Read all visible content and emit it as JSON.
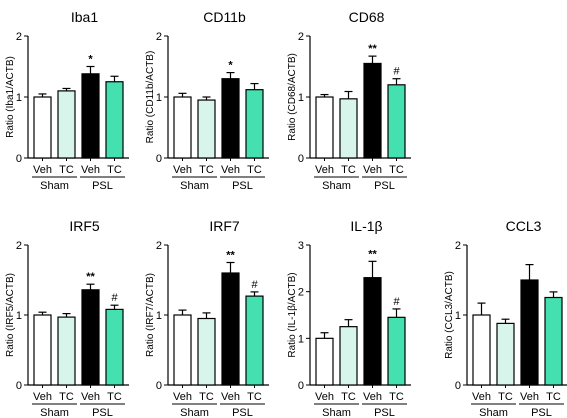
{
  "colors": {
    "veh_sham": "#ffffff",
    "tc_sham": "#d8f5ec",
    "veh_psl": "#000000",
    "tc_psl": "#44e0b0",
    "outline": "#000000"
  },
  "groups": {
    "sham": "Sham",
    "psl": "PSL"
  },
  "chart_data": [
    {
      "type": "bar",
      "title": "Iba1",
      "ylabel": "Ratio (Iba1/ACTB)",
      "ylim": [
        0,
        2
      ],
      "yticks": [
        "0",
        "1",
        "2"
      ],
      "categories": [
        "Veh",
        "TC",
        "Veh",
        "TC"
      ],
      "values": [
        1.0,
        1.1,
        1.38,
        1.25
      ],
      "errors": [
        0.05,
        0.04,
        0.12,
        0.09
      ],
      "annotations": [
        "",
        "",
        "*",
        ""
      ]
    },
    {
      "type": "bar",
      "title": "CD11b",
      "ylabel": "Ratio (CD11b/ACTB)",
      "ylim": [
        0,
        2
      ],
      "yticks": [
        "0",
        "1",
        "2"
      ],
      "categories": [
        "Veh",
        "TC",
        "Veh",
        "TC"
      ],
      "values": [
        1.0,
        0.95,
        1.3,
        1.12
      ],
      "errors": [
        0.06,
        0.05,
        0.1,
        0.1
      ],
      "annotations": [
        "",
        "",
        "*",
        ""
      ]
    },
    {
      "type": "bar",
      "title": "CD68",
      "ylabel": "Ratio (CD68/ACTB)",
      "ylim": [
        0,
        2
      ],
      "yticks": [
        "0",
        "1",
        "2"
      ],
      "categories": [
        "Veh",
        "TC",
        "Veh",
        "TC"
      ],
      "values": [
        1.0,
        0.97,
        1.55,
        1.2
      ],
      "errors": [
        0.04,
        0.12,
        0.12,
        0.1
      ],
      "annotations": [
        "",
        "",
        "**",
        "#"
      ]
    },
    {
      "type": "bar",
      "title": "IRF5",
      "ylabel": "Ratio (IRF5/ACTB)",
      "ylim": [
        0,
        2
      ],
      "yticks": [
        "0",
        "1",
        "2"
      ],
      "categories": [
        "Veh",
        "TC",
        "Veh",
        "TC"
      ],
      "values": [
        1.0,
        0.97,
        1.36,
        1.08
      ],
      "errors": [
        0.04,
        0.05,
        0.08,
        0.06
      ],
      "annotations": [
        "",
        "",
        "**",
        "#"
      ]
    },
    {
      "type": "bar",
      "title": "IRF7",
      "ylabel": "Ratio (IRF7/ACTB)",
      "ylim": [
        0,
        2
      ],
      "yticks": [
        "0",
        "1",
        "2"
      ],
      "categories": [
        "Veh",
        "TC",
        "Veh",
        "TC"
      ],
      "values": [
        1.0,
        0.95,
        1.6,
        1.27
      ],
      "errors": [
        0.07,
        0.08,
        0.15,
        0.06
      ],
      "annotations": [
        "",
        "",
        "**",
        "#"
      ]
    },
    {
      "type": "bar",
      "title": "IL-1β",
      "ylabel": "Ratio (IL-1β/ACTB)",
      "ylim": [
        0,
        3
      ],
      "yticks": [
        "0",
        "1",
        "2",
        "3"
      ],
      "categories": [
        "Veh",
        "TC",
        "Veh",
        "TC"
      ],
      "values": [
        1.0,
        1.25,
        2.3,
        1.45
      ],
      "errors": [
        0.12,
        0.15,
        0.35,
        0.18
      ],
      "annotations": [
        "",
        "",
        "**",
        "#"
      ]
    },
    {
      "type": "bar",
      "title": "CCL3",
      "ylabel": "Ratio (CCL3/ACTB)",
      "ylim": [
        0,
        2
      ],
      "yticks": [
        "0",
        "1",
        "2"
      ],
      "categories": [
        "Veh",
        "TC",
        "Veh",
        "TC"
      ],
      "values": [
        1.0,
        0.88,
        1.5,
        1.25
      ],
      "errors": [
        0.17,
        0.06,
        0.22,
        0.08
      ],
      "annotations": [
        "",
        "",
        "",
        ""
      ]
    }
  ]
}
